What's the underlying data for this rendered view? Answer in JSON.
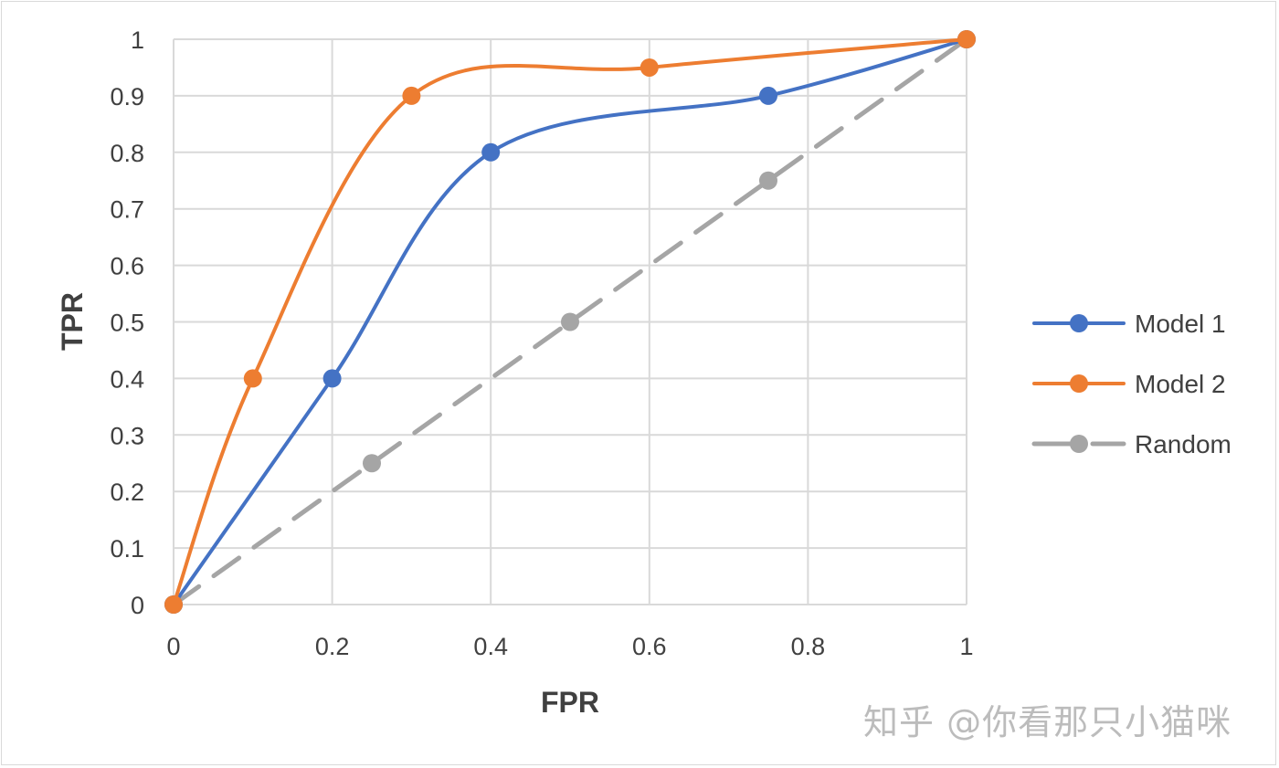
{
  "chart_data": {
    "type": "line",
    "title": "",
    "xlabel": "FPR",
    "ylabel": "TPR",
    "xlim": [
      0,
      1
    ],
    "ylim": [
      0,
      1
    ],
    "grid": true,
    "legend_position": "right",
    "x_ticks": [
      "0",
      "0.2",
      "0.4",
      "0.6",
      "0.8",
      "1"
    ],
    "y_ticks": [
      "0",
      "0.1",
      "0.2",
      "0.3",
      "0.4",
      "0.5",
      "0.6",
      "0.7",
      "0.8",
      "0.9",
      "1"
    ],
    "series": [
      {
        "name": "Model 1",
        "color": "#4472c4",
        "style": "smooth-solid",
        "points": [
          [
            0,
            0
          ],
          [
            0.2,
            0.4
          ],
          [
            0.4,
            0.8
          ],
          [
            0.75,
            0.9
          ],
          [
            1,
            1
          ]
        ]
      },
      {
        "name": "Model 2",
        "color": "#ed7d31",
        "style": "smooth-solid",
        "points": [
          [
            0,
            0
          ],
          [
            0.1,
            0.4
          ],
          [
            0.3,
            0.9
          ],
          [
            0.6,
            0.95
          ],
          [
            1,
            1
          ]
        ]
      },
      {
        "name": "Random",
        "color": "#a5a5a5",
        "style": "dashed",
        "points": [
          [
            0,
            0
          ],
          [
            0.25,
            0.25
          ],
          [
            0.5,
            0.5
          ],
          [
            0.75,
            0.75
          ],
          [
            1,
            1
          ]
        ]
      }
    ]
  },
  "watermark": "知乎 @你看那只小猫咪"
}
